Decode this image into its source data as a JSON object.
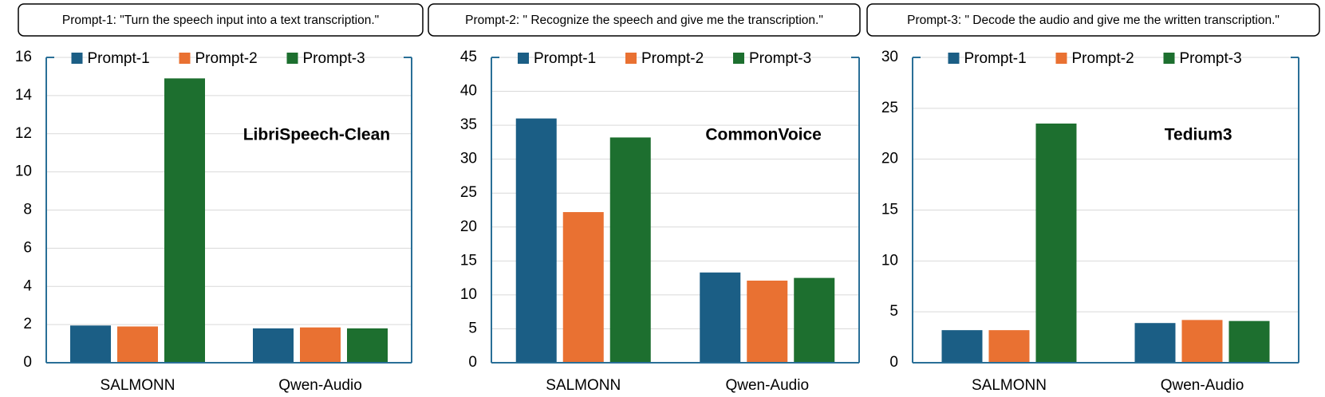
{
  "prompts": [
    "Prompt-1: \"Turn the speech input into a text transcription.\"",
    "Prompt-2: \" Recognize the speech and give me the transcription.\"",
    "Prompt-3: \" Decode the audio and give me the written transcription.\""
  ],
  "chart_data": [
    {
      "type": "bar",
      "annotation": "LibriSpeech-Clean",
      "categories": [
        "SALMONN",
        "Qwen-Audio"
      ],
      "series": [
        {
          "name": "Prompt-1",
          "color": "#1b5e85",
          "values": [
            1.95,
            1.8
          ]
        },
        {
          "name": "Prompt-2",
          "color": "#e97132",
          "values": [
            1.9,
            1.85
          ]
        },
        {
          "name": "Prompt-3",
          "color": "#1d6f2f",
          "values": [
            14.9,
            1.8
          ]
        }
      ],
      "ylim": [
        0,
        16
      ],
      "yticks": [
        0,
        2,
        4,
        6,
        8,
        10,
        12,
        14,
        16
      ],
      "grid": true
    },
    {
      "type": "bar",
      "annotation": "CommonVoice",
      "categories": [
        "SALMONN",
        "Qwen-Audio"
      ],
      "series": [
        {
          "name": "Prompt-1",
          "color": "#1b5e85",
          "values": [
            36,
            13.3
          ]
        },
        {
          "name": "Prompt-2",
          "color": "#e97132",
          "values": [
            22.2,
            12.1
          ]
        },
        {
          "name": "Prompt-3",
          "color": "#1d6f2f",
          "values": [
            33.2,
            12.5
          ]
        }
      ],
      "ylim": [
        0,
        45
      ],
      "yticks": [
        0,
        5,
        10,
        15,
        20,
        25,
        30,
        35,
        40,
        45
      ],
      "grid": true
    },
    {
      "type": "bar",
      "annotation": "Tedium3",
      "categories": [
        "SALMONN",
        "Qwen-Audio"
      ],
      "series": [
        {
          "name": "Prompt-1",
          "color": "#1b5e85",
          "values": [
            3.2,
            3.9
          ]
        },
        {
          "name": "Prompt-2",
          "color": "#e97132",
          "values": [
            3.2,
            4.2
          ]
        },
        {
          "name": "Prompt-3",
          "color": "#1d6f2f",
          "values": [
            23.5,
            4.1
          ]
        }
      ],
      "ylim": [
        0,
        30
      ],
      "yticks": [
        0,
        5,
        10,
        15,
        20,
        25,
        30
      ],
      "grid": true
    }
  ]
}
